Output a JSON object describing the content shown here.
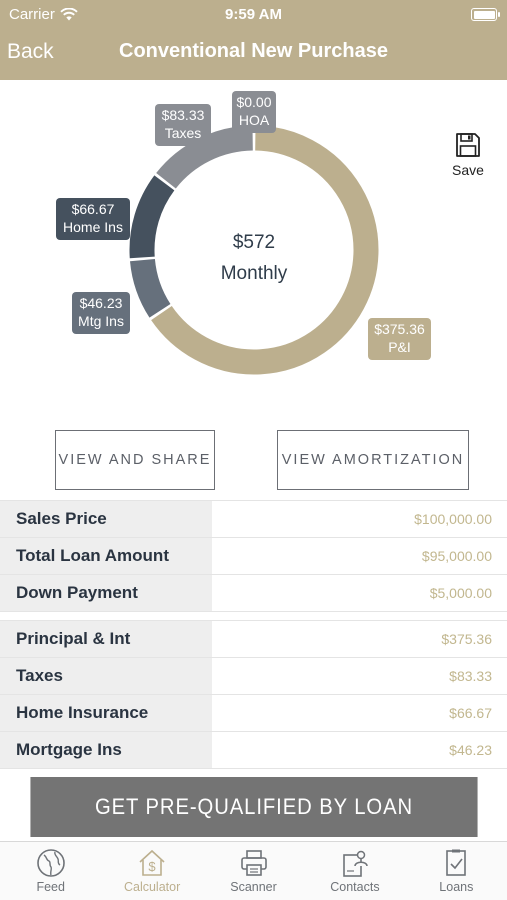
{
  "status": {
    "carrier": "Carrier",
    "time": "9:59 AM"
  },
  "nav": {
    "back": "Back",
    "title": "Conventional New Purchase"
  },
  "chart_data": {
    "type": "pie",
    "center_amount": "$572",
    "center_label": "Monthly",
    "segments": [
      {
        "label": "P&I",
        "value": 375.36,
        "display": "$375.36",
        "color": "#bcaf8e"
      },
      {
        "label": "Mtg Ins",
        "value": 46.23,
        "display": "$46.23",
        "color": "#66707c"
      },
      {
        "label": "Home Ins",
        "value": 66.67,
        "display": "$66.67",
        "color": "#45515e"
      },
      {
        "label": "Taxes",
        "value": 83.33,
        "display": "$83.33",
        "color": "#8a8d93"
      },
      {
        "label": "HOA",
        "value": 0.0,
        "display": "$0.00",
        "color": "#8a8d93"
      }
    ]
  },
  "save_label": "Save",
  "buttons": {
    "share": "VIEW AND SHARE",
    "amortization": "VIEW AMORTIZATION"
  },
  "summary": [
    {
      "label": "Sales Price",
      "value": "$100,000.00"
    },
    {
      "label": "Total Loan Amount",
      "value": "$95,000.00"
    },
    {
      "label": "Down Payment",
      "value": "$5,000.00"
    }
  ],
  "payment": [
    {
      "label": "Principal & Int",
      "value": "$375.36"
    },
    {
      "label": "Taxes",
      "value": "$83.33"
    },
    {
      "label": "Home Insurance",
      "value": "$66.67"
    },
    {
      "label": "Mortgage Ins",
      "value": "$46.23"
    }
  ],
  "cta": "GET PRE-QUALIFIED BY LOAN",
  "tabs": [
    {
      "label": "Feed",
      "icon": "globe-icon",
      "active": false
    },
    {
      "label": "Calculator",
      "icon": "dollar-house-icon",
      "active": true
    },
    {
      "label": "Scanner",
      "icon": "printer-icon",
      "active": false
    },
    {
      "label": "Contacts",
      "icon": "contacts-icon",
      "active": false
    },
    {
      "label": "Loans",
      "icon": "document-check-icon",
      "active": false
    }
  ],
  "colors": {
    "brand": "#bcaf8e",
    "cta": "#747474",
    "text_dark": "#2a3441"
  }
}
